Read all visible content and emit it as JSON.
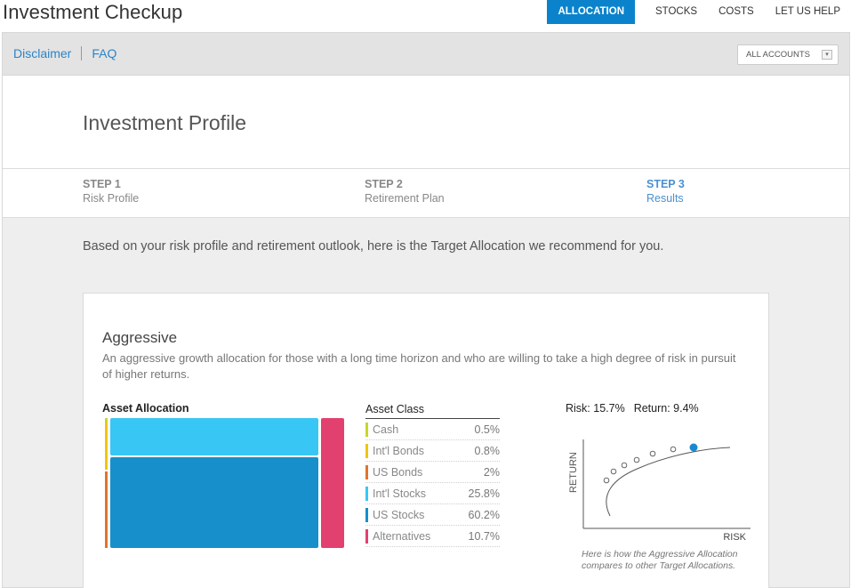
{
  "app": {
    "title": "Investment Checkup"
  },
  "topnav": {
    "items": [
      {
        "label": "ALLOCATION"
      },
      {
        "label": "STOCKS"
      },
      {
        "label": "COSTS"
      },
      {
        "label": "LET US HELP"
      }
    ]
  },
  "subbar": {
    "disclaimer": "Disclaimer",
    "faq": "FAQ",
    "account_select": "ALL ACCOUNTS",
    "account_caret": "▾"
  },
  "page": {
    "title": "Investment Profile"
  },
  "steps": [
    {
      "num": "STEP 1",
      "label": "Risk Profile"
    },
    {
      "num": "STEP 2",
      "label": "Retirement Plan"
    },
    {
      "num": "STEP 3",
      "label": "Results"
    }
  ],
  "intro": "Based on your risk profile and retirement outlook, here is the Target Allocation we recommend for you.",
  "result": {
    "title": "Aggressive",
    "description": "An aggressive growth allocation for those with a long time horizon and who are willing to take a high degree of risk in pursuit of higher returns."
  },
  "allocation": {
    "heading": "Asset Allocation",
    "table_heading": "Asset Class",
    "classes": [
      {
        "name": "Cash",
        "value": "0.5%",
        "color": "#c7d62b"
      },
      {
        "name": "Int'l Bonds",
        "value": "0.8%",
        "color": "#f2c413"
      },
      {
        "name": "US Bonds",
        "value": "2%",
        "color": "#e0742b"
      },
      {
        "name": "Int'l Stocks",
        "value": "25.8%",
        "color": "#38c7f4"
      },
      {
        "name": "US Stocks",
        "value": "60.2%",
        "color": "#168fcb"
      },
      {
        "name": "Alternatives",
        "value": "10.7%",
        "color": "#e2406f"
      }
    ]
  },
  "risk_return": {
    "risk_label": "Risk: 15.7%",
    "return_label": "Return: 9.4%",
    "y_axis": "RETURN",
    "x_axis": "RISK",
    "note": "Here is how the Aggressive Allocation compares to other Target Allocations."
  },
  "colors": {
    "accent": "#0a83cc",
    "link": "#2a84c6",
    "step_active": "#4a90cf",
    "highlight_point": "#1a8ad0"
  }
}
